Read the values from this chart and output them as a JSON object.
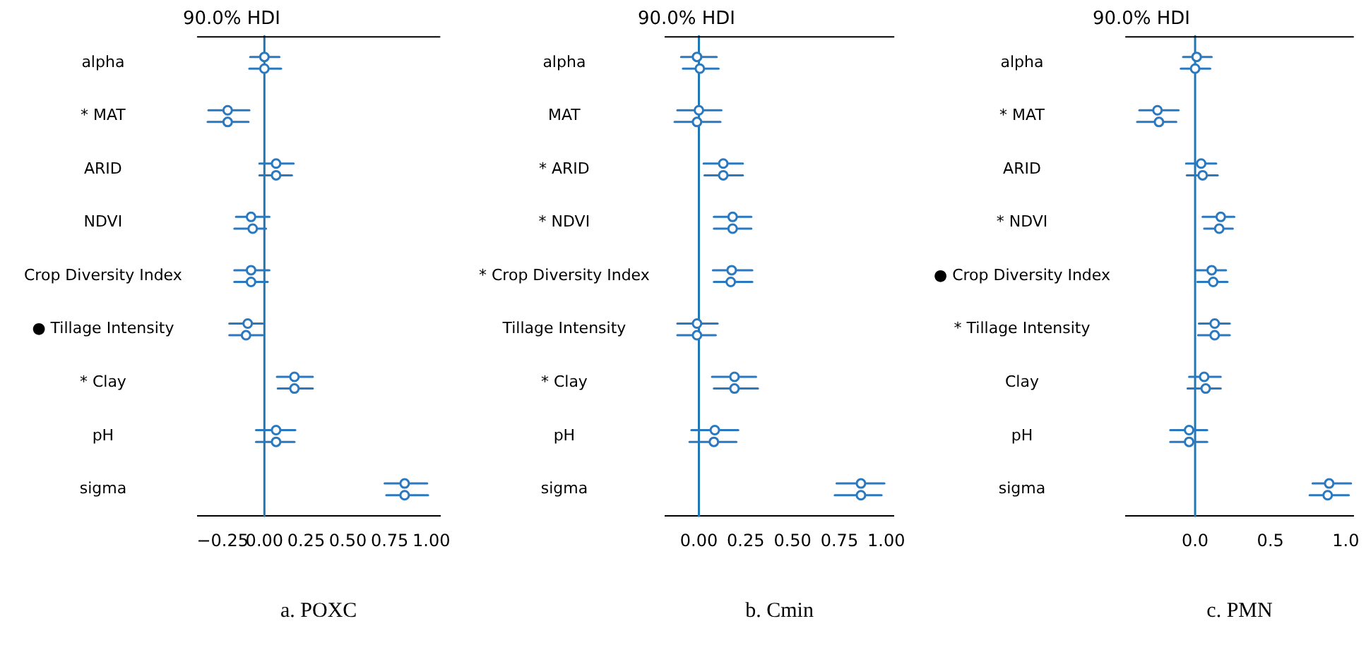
{
  "chart_data": [
    {
      "type": "scatter",
      "orientation": "horizontal",
      "title": "90.0% HDI",
      "xlabel": "a. POXC",
      "marker": "circle",
      "grid": false,
      "legend": false,
      "categories": [
        "alpha",
        "* MAT",
        "ARID",
        "NDVI",
        "Crop Diversity Index",
        "● Tillage Intensity",
        "* Clay",
        "pH",
        "sigma"
      ],
      "xlim": [
        -0.4,
        1.05
      ],
      "xticks": [
        {
          "value": -0.25,
          "label": "−0.25"
        },
        {
          "value": 0,
          "label": "0.00"
        },
        {
          "value": 0.25,
          "label": "0.25"
        },
        {
          "value": 0.5,
          "label": "0.50"
        },
        {
          "value": 0.75,
          "label": "0.75"
        },
        {
          "value": 1,
          "label": "1.00"
        }
      ],
      "ref_lines": [
        {
          "axis": "x",
          "value": 0,
          "color": "#1f77b4"
        }
      ],
      "series": [
        {
          "color": "#2a78c0",
          "values": [
            0.0,
            -0.22,
            0.07,
            -0.08,
            -0.08,
            -0.1,
            0.18,
            0.07,
            0.84
          ],
          "errors": [
            [
              -0.085,
              0.09
            ],
            [
              -0.335,
              -0.09
            ],
            [
              -0.03,
              0.175
            ],
            [
              -0.17,
              0.03
            ],
            [
              -0.18,
              0.03
            ],
            [
              -0.21,
              -0.01
            ],
            [
              0.075,
              0.29
            ],
            [
              -0.05,
              0.185
            ],
            [
              0.72,
              0.975
            ]
          ]
        },
        {
          "color": "#2a78c0",
          "values": [
            0.0,
            -0.22,
            0.07,
            -0.07,
            -0.08,
            -0.11,
            0.18,
            0.07,
            0.84
          ],
          "errors": [
            [
              -0.09,
              0.1
            ],
            [
              -0.34,
              -0.095
            ],
            [
              -0.03,
              0.165
            ],
            [
              -0.18,
              0.01
            ],
            [
              -0.18,
              0.02
            ],
            [
              -0.21,
              -0.01
            ],
            [
              0.08,
              0.29
            ],
            [
              -0.05,
              0.18
            ],
            [
              0.73,
              0.98
            ]
          ]
        }
      ]
    },
    {
      "type": "scatter",
      "orientation": "horizontal",
      "title": "90.0% HDI",
      "xlabel": "b. Cmin",
      "marker": "circle",
      "grid": false,
      "legend": false,
      "categories": [
        "alpha",
        "MAT",
        "* ARID",
        "* NDVI",
        "* Crop Diversity Index",
        "Tillage Intensity",
        "* Clay",
        "pH",
        "sigma"
      ],
      "xlim": [
        -0.18,
        1.04
      ],
      "xticks": [
        {
          "value": 0,
          "label": "0.00"
        },
        {
          "value": 0.25,
          "label": "0.25"
        },
        {
          "value": 0.5,
          "label": "0.50"
        },
        {
          "value": 0.75,
          "label": "0.75"
        },
        {
          "value": 1,
          "label": "1.00"
        }
      ],
      "ref_lines": [
        {
          "axis": "x",
          "value": 0,
          "color": "#1f77b4"
        }
      ],
      "series": [
        {
          "color": "#2a78c0",
          "values": [
            -0.01,
            0.0,
            0.13,
            0.18,
            0.175,
            -0.01,
            0.19,
            0.085,
            0.865
          ],
          "errors": [
            [
              -0.095,
              0.095
            ],
            [
              -0.115,
              0.12
            ],
            [
              0.025,
              0.235
            ],
            [
              0.08,
              0.28
            ],
            [
              0.075,
              0.285
            ],
            [
              -0.115,
              0.1
            ],
            [
              0.07,
              0.305
            ],
            [
              -0.04,
              0.21
            ],
            [
              0.735,
              0.99
            ]
          ]
        },
        {
          "color": "#2a78c0",
          "values": [
            0.005,
            -0.01,
            0.13,
            0.18,
            0.17,
            -0.01,
            0.19,
            0.08,
            0.865
          ],
          "errors": [
            [
              -0.085,
              0.105
            ],
            [
              -0.13,
              0.115
            ],
            [
              0.03,
              0.235
            ],
            [
              0.08,
              0.28
            ],
            [
              0.08,
              0.285
            ],
            [
              -0.115,
              0.09
            ],
            [
              0.08,
              0.315
            ],
            [
              -0.05,
              0.2
            ],
            [
              0.725,
              0.975
            ]
          ]
        }
      ]
    },
    {
      "type": "scatter",
      "orientation": "horizontal",
      "title": "90.0% HDI",
      "xlabel": "c. PMN",
      "marker": "circle",
      "grid": false,
      "legend": false,
      "categories": [
        "alpha",
        "* MAT",
        "ARID",
        "* NDVI",
        "● Crop Diversity Index",
        "* Tillage Intensity",
        "Clay",
        "pH",
        "sigma"
      ],
      "xlim": [
        -0.46,
        1.05
      ],
      "xticks": [
        {
          "value": 0,
          "label": "0.0"
        },
        {
          "value": 0.5,
          "label": "0.5"
        },
        {
          "value": 1,
          "label": "1.0"
        }
      ],
      "ref_lines": [
        {
          "axis": "x",
          "value": 0,
          "color": "#1f77b4"
        }
      ],
      "series": [
        {
          "color": "#2a78c0",
          "values": [
            0.01,
            -0.25,
            0.04,
            0.17,
            0.11,
            0.13,
            0.06,
            -0.04,
            0.89
          ],
          "errors": [
            [
              -0.08,
              0.11
            ],
            [
              -0.37,
              -0.11
            ],
            [
              -0.06,
              0.14
            ],
            [
              0.05,
              0.26
            ],
            [
              0.005,
              0.205
            ],
            [
              0.025,
              0.23
            ],
            [
              -0.04,
              0.17
            ],
            [
              -0.165,
              0.08
            ],
            [
              0.78,
              1.035
            ]
          ]
        },
        {
          "color": "#2a78c0",
          "values": [
            0.0,
            -0.24,
            0.05,
            0.16,
            0.12,
            0.13,
            0.07,
            -0.04,
            0.88
          ],
          "errors": [
            [
              -0.095,
              0.1
            ],
            [
              -0.385,
              -0.125
            ],
            [
              -0.055,
              0.15
            ],
            [
              0.06,
              0.25
            ],
            [
              0.015,
              0.215
            ],
            [
              0.02,
              0.23
            ],
            [
              -0.05,
              0.17
            ],
            [
              -0.165,
              0.08
            ],
            [
              0.76,
              1.02
            ]
          ]
        }
      ]
    }
  ]
}
